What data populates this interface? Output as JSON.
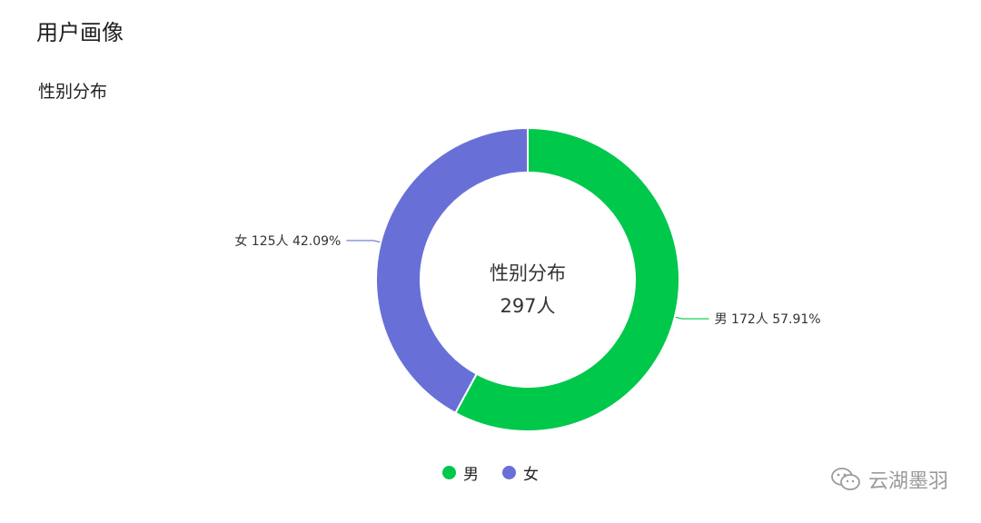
{
  "page": {
    "title": "用户画像",
    "section_title": "性别分布"
  },
  "chart_data": {
    "type": "pie",
    "donut": true,
    "center_title": "性别分布",
    "center_value": "297人",
    "total": 297,
    "unit": "人",
    "series": [
      {
        "name": "男",
        "value": 172,
        "percent": "57.91%",
        "color": "#00c84a",
        "label": "男 172人 57.91%"
      },
      {
        "name": "女",
        "value": 125,
        "percent": "42.09%",
        "color": "#6870d7",
        "label": "女 125人 42.09%"
      }
    ],
    "legend": {
      "placement": "bottom",
      "items": [
        "男",
        "女"
      ]
    }
  },
  "watermark": {
    "text": "云湖墨羽",
    "icon": "wechat-icon"
  }
}
